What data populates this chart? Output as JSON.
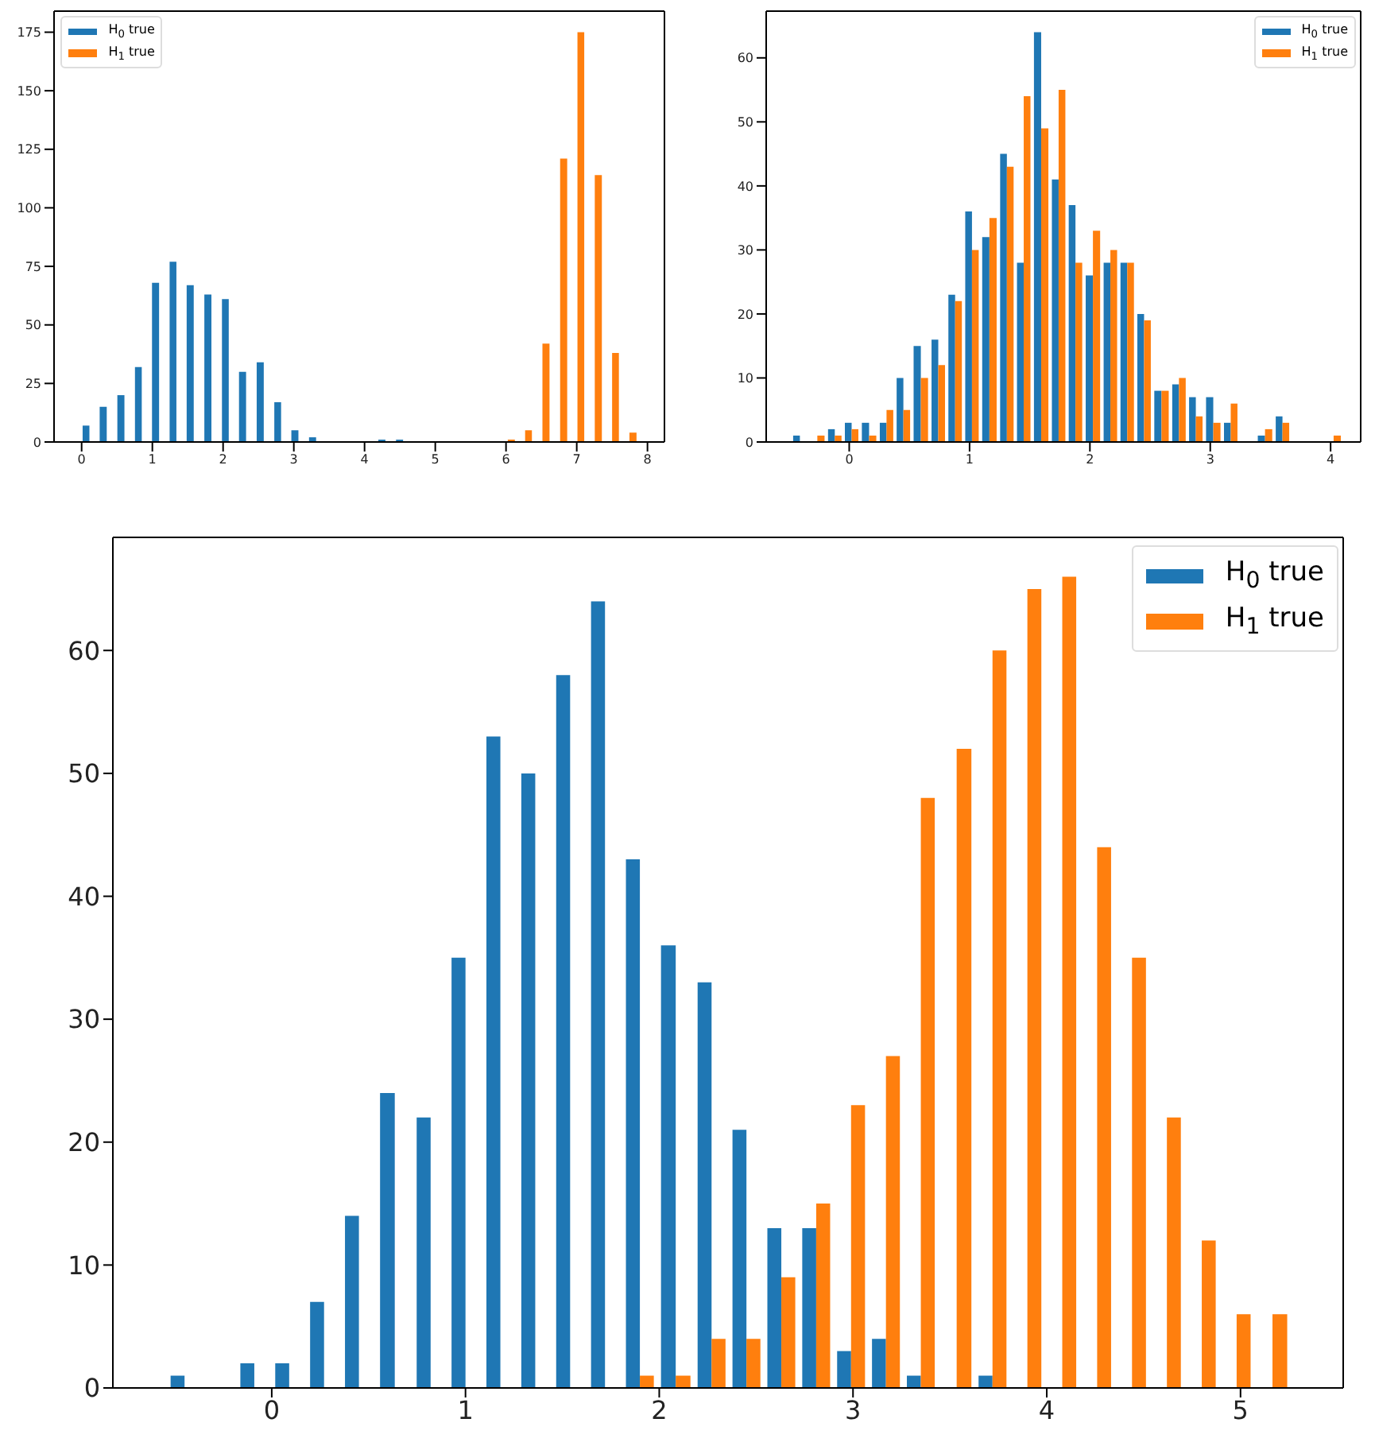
{
  "chart_data": [
    {
      "type": "histogram",
      "bins": [
        -0.01,
        0.23,
        0.48,
        0.73,
        0.97,
        1.22,
        1.46,
        1.71,
        1.96,
        2.2,
        2.45,
        2.7,
        2.94,
        3.19,
        3.44,
        4.17,
        4.42,
        4.67,
        5.9,
        6.15,
        6.39,
        6.64,
        6.89,
        7.13,
        7.38,
        7.62,
        7.87
      ],
      "xlim": [
        -0.39,
        8.24
      ],
      "xticks": [
        0,
        1,
        2,
        3,
        4,
        5,
        6,
        7,
        8
      ],
      "ylim": [
        0,
        184
      ],
      "yticks": [
        0,
        25,
        50,
        75,
        100,
        125,
        150,
        175
      ],
      "legend": "top left",
      "grid": false,
      "series": [
        {
          "name": "H$_{0}$ true",
          "color": "#1f77b4",
          "values": [
            7,
            15,
            20,
            32,
            68,
            77,
            67,
            63,
            61,
            30,
            34,
            17,
            5,
            2,
            0,
            1,
            1,
            0,
            0,
            0,
            0,
            0,
            0,
            0,
            0,
            0
          ]
        },
        {
          "name": "H$_{1}$ true",
          "color": "#ff7f0e",
          "values": [
            0,
            0,
            0,
            0,
            0,
            0,
            0,
            0,
            0,
            0,
            0,
            0,
            0,
            0,
            0,
            0,
            0,
            0,
            1,
            5,
            42,
            121,
            175,
            114,
            38,
            4
          ]
        }
      ]
    },
    {
      "type": "histogram",
      "bins": [
        -0.48,
        -0.34,
        -0.19,
        -0.05,
        0.09,
        0.24,
        0.38,
        0.52,
        0.67,
        0.81,
        0.95,
        1.09,
        1.24,
        1.38,
        1.52,
        1.67,
        1.81,
        1.95,
        2.1,
        2.24,
        2.38,
        2.52,
        2.67,
        2.81,
        2.95,
        3.1,
        3.24,
        3.38,
        3.53,
        3.67,
        3.95,
        4.1
      ],
      "xlim": [
        -0.69,
        4.25
      ],
      "xticks": [
        0,
        1,
        2,
        3,
        4
      ],
      "ylim": [
        0,
        67.3
      ],
      "yticks": [
        0,
        10,
        20,
        30,
        40,
        50,
        60
      ],
      "legend": "top right",
      "grid": false,
      "series": [
        {
          "name": "H$_{0}$ true",
          "color": "#1f77b4",
          "values": [
            1,
            0,
            2,
            3,
            3,
            3,
            10,
            15,
            16,
            23,
            36,
            32,
            45,
            28,
            64,
            41,
            37,
            26,
            28,
            28,
            20,
            8,
            9,
            7,
            7,
            3,
            0,
            1,
            4,
            0,
            0
          ]
        },
        {
          "name": "H$_{1}$ true",
          "color": "#ff7f0e",
          "values": [
            0,
            1,
            1,
            2,
            1,
            5,
            5,
            10,
            12,
            22,
            30,
            35,
            43,
            54,
            49,
            55,
            28,
            33,
            30,
            28,
            19,
            8,
            10,
            4,
            3,
            6,
            0,
            2,
            3,
            0,
            1
          ]
        }
      ]
    },
    {
      "type": "histogram",
      "bins": [
        -0.54,
        -0.36,
        -0.18,
        0,
        0.18,
        0.36,
        0.54,
        0.73,
        0.91,
        1.09,
        1.27,
        1.45,
        1.63,
        1.81,
        1.99,
        2.18,
        2.36,
        2.54,
        2.72,
        2.9,
        3.08,
        3.26,
        3.44,
        3.63,
        3.81,
        3.99,
        4.17,
        4.35,
        4.53,
        4.71,
        4.89,
        5.07,
        5.26
      ],
      "xlim": [
        -0.82,
        5.53
      ],
      "xticks": [
        0,
        1,
        2,
        3,
        4,
        5
      ],
      "ylim": [
        0,
        69.2
      ],
      "yticks": [
        0,
        10,
        20,
        30,
        40,
        50,
        60
      ],
      "legend": "top right",
      "grid": false,
      "series": [
        {
          "name": "H$_{0}$ true",
          "color": "#1f77b4",
          "values": [
            1,
            0,
            2,
            2,
            7,
            14,
            24,
            22,
            35,
            53,
            50,
            58,
            64,
            43,
            36,
            33,
            21,
            13,
            13,
            3,
            4,
            1,
            0,
            1,
            0,
            0,
            0,
            0,
            0,
            0,
            0,
            0
          ]
        },
        {
          "name": "H$_{1}$ true",
          "color": "#ff7f0e",
          "values": [
            0,
            0,
            0,
            0,
            0,
            0,
            0,
            0,
            0,
            0,
            0,
            0,
            0,
            1,
            1,
            4,
            4,
            9,
            15,
            23,
            27,
            48,
            52,
            60,
            65,
            66,
            44,
            35,
            22,
            12,
            6,
            6
          ]
        }
      ]
    }
  ]
}
